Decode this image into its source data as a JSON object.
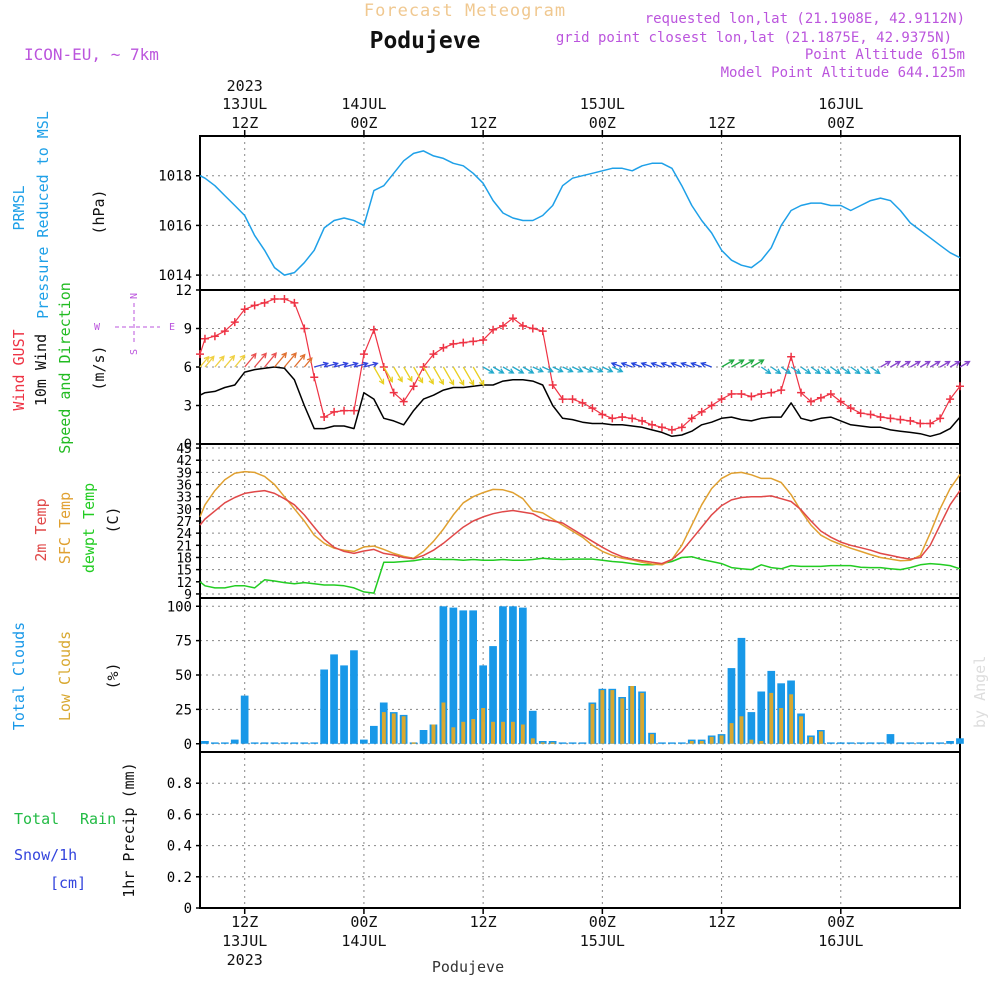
{
  "header": {
    "product": "Forecast Meteogram",
    "location": "Podujeve",
    "model": "ICON-EU, ~ 7km",
    "requested": "requested lon,lat (21.1908E, 42.9112N)",
    "gridpoint": "grid point closest lon,lat (21.1875E, 42.9375N)",
    "point_alt": "Point Altitude 615m",
    "model_alt": "Model Point Altitude 644.125m",
    "watermark": "by Angel",
    "footer": "Podujeve"
  },
  "time_axis": {
    "year": "2023",
    "ticks": [
      {
        "hour": 12,
        "label": "12Z",
        "date": "13JUL"
      },
      {
        "hour": 24,
        "label": "00Z",
        "date": "14JUL"
      },
      {
        "hour": 36,
        "label": "12Z",
        "date": ""
      },
      {
        "hour": 48,
        "label": "00Z",
        "date": "15JUL"
      },
      {
        "hour": 60,
        "label": "12Z",
        "date": ""
      },
      {
        "hour": 72,
        "label": "00Z",
        "date": "16JUL"
      }
    ],
    "range_hours": [
      7.5,
      84
    ]
  },
  "colors": {
    "pressure": "#1ea0e8",
    "gust": "#ee3344",
    "wind": "#000000",
    "dir": "#22bb22",
    "t2m": "#e04848",
    "tsfc": "#e0a030",
    "dewpt": "#22cc22",
    "total_cloud": "#1898e8",
    "low_cloud": "#d8a830",
    "rain": "#22bb44",
    "snow": "#3344dd",
    "alt": "#bb55dd"
  },
  "chart_data": [
    {
      "type": "line",
      "panel": "pressure",
      "labels": [
        "PRMSL",
        "Pressure Reduced to MSL",
        "(hPa)"
      ],
      "ylim": [
        1013.4,
        1019.6
      ],
      "yticks": [
        1014,
        1016,
        1018
      ],
      "x": [
        7.5,
        8,
        9,
        10,
        11,
        12,
        13,
        14,
        15,
        16,
        17,
        18,
        19,
        20,
        21,
        22,
        23,
        24,
        25,
        26,
        27,
        28,
        29,
        30,
        31,
        32,
        33,
        34,
        35,
        36,
        37,
        38,
        39,
        40,
        41,
        42,
        43,
        44,
        45,
        46,
        47,
        48,
        49,
        50,
        51,
        52,
        53,
        54,
        55,
        56,
        57,
        58,
        59,
        60,
        61,
        62,
        63,
        64,
        65,
        66,
        67,
        68,
        69,
        70,
        71,
        72,
        73,
        74,
        75,
        76,
        77,
        78,
        79,
        80,
        81,
        82,
        83,
        84
      ],
      "series": [
        {
          "values": [
            1018.0,
            1017.9,
            1017.6,
            1017.2,
            1016.8,
            1016.4,
            1015.6,
            1015.0,
            1014.3,
            1014.0,
            1014.1,
            1014.5,
            1015.0,
            1015.9,
            1016.2,
            1016.3,
            1016.2,
            1016.0,
            1017.4,
            1017.6,
            1018.1,
            1018.6,
            1018.9,
            1019.0,
            1018.8,
            1018.7,
            1018.5,
            1018.4,
            1018.1,
            1017.7,
            1017.0,
            1016.5,
            1016.3,
            1016.2,
            1016.2,
            1016.4,
            1016.8,
            1017.6,
            1017.9,
            1018.0,
            1018.1,
            1018.2,
            1018.3,
            1018.3,
            1018.2,
            1018.4,
            1018.5,
            1018.5,
            1018.3,
            1017.6,
            1016.8,
            1016.2,
            1015.7,
            1015.0,
            1014.6,
            1014.4,
            1014.3,
            1014.6,
            1015.1,
            1016.0,
            1016.6,
            1016.8,
            1016.9,
            1016.9,
            1016.8,
            1016.8,
            1016.6,
            1016.8,
            1017.0,
            1017.1,
            1017.0,
            1016.6,
            1016.1,
            1015.8,
            1015.5,
            1015.2,
            1014.9,
            1014.7
          ]
        }
      ]
    },
    {
      "type": "line",
      "panel": "wind",
      "labels": [
        "Wind GUST",
        "10m Wind",
        "Speed and Direction",
        "(m/s)"
      ],
      "compass": {
        "n": "N",
        "s": "S",
        "w": "W",
        "e": "E"
      },
      "ylim": [
        0,
        12
      ],
      "yticks": [
        0,
        3,
        6,
        9,
        12
      ],
      "x": [
        7.5,
        8,
        9,
        10,
        11,
        12,
        13,
        14,
        15,
        16,
        17,
        18,
        19,
        20,
        21,
        22,
        23,
        24,
        25,
        26,
        27,
        28,
        29,
        30,
        31,
        32,
        33,
        34,
        35,
        36,
        37,
        38,
        39,
        40,
        41,
        42,
        43,
        44,
        45,
        46,
        47,
        48,
        49,
        50,
        51,
        52,
        53,
        54,
        55,
        56,
        57,
        58,
        59,
        60,
        61,
        62,
        63,
        64,
        65,
        66,
        67,
        68,
        69,
        70,
        71,
        72,
        73,
        74,
        75,
        76,
        77,
        78,
        79,
        80,
        81,
        82,
        83,
        84
      ],
      "series": [
        {
          "name": "gust",
          "values": [
            7.0,
            8.2,
            8.4,
            8.8,
            9.5,
            10.5,
            10.8,
            11.0,
            11.3,
            11.3,
            11.0,
            9.0,
            5.2,
            2.1,
            2.5,
            2.6,
            2.6,
            7.0,
            8.9,
            6.0,
            4.0,
            3.3,
            4.5,
            6.0,
            7.0,
            7.5,
            7.8,
            7.9,
            8.0,
            8.1,
            8.9,
            9.2,
            9.8,
            9.2,
            9.0,
            8.8,
            4.6,
            3.5,
            3.5,
            3.2,
            2.8,
            2.3,
            2.0,
            2.1,
            2.0,
            1.8,
            1.5,
            1.3,
            1.1,
            1.3,
            2.0,
            2.5,
            3.0,
            3.5,
            3.9,
            3.9,
            3.7,
            3.9,
            4.0,
            4.2,
            6.8,
            4.0,
            3.3,
            3.6,
            3.9,
            3.3,
            2.8,
            2.4,
            2.3,
            2.1,
            2.0,
            1.9,
            1.8,
            1.6,
            1.6,
            2.0,
            3.5,
            4.5
          ]
        },
        {
          "name": "wind",
          "values": [
            3.8,
            4.0,
            4.1,
            4.4,
            4.6,
            5.6,
            5.8,
            5.9,
            6.0,
            5.9,
            5.0,
            3.0,
            1.2,
            1.2,
            1.4,
            1.4,
            1.2,
            4.0,
            3.5,
            2.0,
            1.8,
            1.5,
            2.6,
            3.5,
            3.8,
            4.2,
            4.4,
            4.4,
            4.5,
            4.6,
            4.6,
            4.9,
            5.0,
            5.0,
            4.9,
            4.6,
            3.0,
            2.0,
            1.9,
            1.7,
            1.6,
            1.6,
            1.5,
            1.5,
            1.4,
            1.3,
            1.1,
            0.9,
            0.6,
            0.7,
            1.0,
            1.5,
            1.7,
            2.0,
            2.1,
            1.9,
            1.8,
            2.0,
            2.1,
            2.1,
            3.2,
            2.0,
            1.8,
            2.0,
            2.1,
            1.8,
            1.5,
            1.4,
            1.3,
            1.3,
            1.1,
            1.0,
            0.9,
            0.8,
            0.6,
            0.8,
            1.2,
            2.1
          ]
        }
      ]
    },
    {
      "type": "line",
      "panel": "temperature",
      "labels": [
        "2m Temp",
        "SFC Temp",
        "dewpt Temp",
        "(C)"
      ],
      "ylim": [
        8,
        46
      ],
      "yticks": [
        9,
        12,
        15,
        18,
        21,
        24,
        27,
        30,
        33,
        36,
        39,
        42,
        45
      ],
      "x": [
        7.5,
        8,
        9,
        10,
        11,
        12,
        13,
        14,
        15,
        16,
        17,
        18,
        19,
        20,
        21,
        22,
        23,
        24,
        25,
        26,
        27,
        28,
        29,
        30,
        31,
        32,
        33,
        34,
        35,
        36,
        37,
        38,
        39,
        40,
        41,
        42,
        43,
        44,
        45,
        46,
        47,
        48,
        49,
        50,
        51,
        52,
        53,
        54,
        55,
        56,
        57,
        58,
        59,
        60,
        61,
        62,
        63,
        64,
        65,
        66,
        67,
        68,
        69,
        70,
        71,
        72,
        73,
        74,
        75,
        76,
        77,
        78,
        79,
        80,
        81,
        82,
        83,
        84
      ],
      "series": [
        {
          "name": "2m Temp",
          "values": [
            26.0,
            27.5,
            29.5,
            31.5,
            32.8,
            33.8,
            34.2,
            34.5,
            33.8,
            32.5,
            31.0,
            28.5,
            25.5,
            22.5,
            20.5,
            19.5,
            19.0,
            19.6,
            20.0,
            19.0,
            18.6,
            18.0,
            17.7,
            18.5,
            19.8,
            21.5,
            23.5,
            25.5,
            27.0,
            28.0,
            28.8,
            29.3,
            29.6,
            29.2,
            28.8,
            27.5,
            27.0,
            26.5,
            25.0,
            23.5,
            22.0,
            20.5,
            19.2,
            18.2,
            17.6,
            17.2,
            16.8,
            16.5,
            17.5,
            19.5,
            22.5,
            25.5,
            28.5,
            30.8,
            32.2,
            32.8,
            33.0,
            33.0,
            33.2,
            32.5,
            31.8,
            29.8,
            27.0,
            24.5,
            23.0,
            21.8,
            21.0,
            20.4,
            19.8,
            19.0,
            18.5,
            18.0,
            17.6,
            18.0,
            21.0,
            26.0,
            31.0,
            34.5
          ]
        },
        {
          "name": "SFC Temp",
          "values": [
            28.0,
            31.0,
            34.5,
            37.2,
            38.8,
            39.2,
            39.0,
            38.0,
            36.0,
            33.0,
            30.0,
            27.0,
            23.5,
            21.5,
            20.3,
            19.8,
            19.5,
            20.6,
            20.8,
            20.0,
            19.0,
            18.3,
            17.8,
            19.5,
            22.0,
            25.0,
            28.5,
            31.5,
            33.0,
            34.0,
            34.8,
            34.7,
            34.0,
            32.5,
            29.5,
            29.0,
            27.5,
            26.0,
            24.5,
            23.0,
            21.0,
            19.5,
            18.5,
            17.8,
            17.4,
            16.8,
            16.4,
            16.2,
            17.5,
            21.0,
            26.0,
            31.0,
            35.0,
            37.5,
            38.8,
            39.0,
            38.4,
            37.5,
            37.5,
            36.5,
            33.5,
            29.5,
            26.0,
            23.5,
            22.2,
            21.2,
            20.3,
            19.5,
            18.7,
            18.0,
            17.6,
            17.2,
            17.3,
            18.5,
            24.0,
            30.0,
            35.0,
            38.5
          ]
        },
        {
          "name": "dewpt Temp",
          "values": [
            12.0,
            11.0,
            10.5,
            10.5,
            11.0,
            11.0,
            10.5,
            12.5,
            12.2,
            11.8,
            11.5,
            11.8,
            11.5,
            11.2,
            11.2,
            11.0,
            10.5,
            9.5,
            9.2,
            16.8,
            16.8,
            17.0,
            17.2,
            17.6,
            17.6,
            17.5,
            17.5,
            17.3,
            17.5,
            17.3,
            17.3,
            17.5,
            17.3,
            17.3,
            17.5,
            17.8,
            17.6,
            17.5,
            17.6,
            17.6,
            17.6,
            17.3,
            17.0,
            16.8,
            16.5,
            16.2,
            16.2,
            16.5,
            17.0,
            18.0,
            18.2,
            17.5,
            17.0,
            16.5,
            15.5,
            15.2,
            15.0,
            16.2,
            15.5,
            15.2,
            16.0,
            15.8,
            15.8,
            15.8,
            16.0,
            16.0,
            16.0,
            15.6,
            15.5,
            15.5,
            15.2,
            15.0,
            15.5,
            16.2,
            16.5,
            16.3,
            16.0,
            15.2
          ]
        }
      ]
    },
    {
      "type": "bar",
      "panel": "clouds",
      "labels": [
        "Total Clouds",
        "Low Clouds",
        "(%)"
      ],
      "ylim": [
        -6,
        106
      ],
      "yticks": [
        0,
        25,
        50,
        75,
        100
      ],
      "x": [
        8,
        9,
        10,
        11,
        12,
        13,
        14,
        15,
        16,
        17,
        18,
        19,
        20,
        21,
        22,
        23,
        24,
        25,
        26,
        27,
        28,
        29,
        30,
        31,
        32,
        33,
        34,
        35,
        36,
        37,
        38,
        39,
        40,
        41,
        42,
        43,
        44,
        45,
        46,
        47,
        48,
        49,
        50,
        51,
        52,
        53,
        54,
        55,
        56,
        57,
        58,
        59,
        60,
        61,
        62,
        63,
        64,
        65,
        66,
        67,
        68,
        69,
        70,
        71,
        72,
        73,
        74,
        75,
        76,
        77,
        78,
        79,
        80,
        81,
        82,
        83,
        84
      ],
      "series": [
        {
          "name": "Total Clouds",
          "values": [
            2,
            1,
            1,
            3,
            35,
            1,
            1,
            1,
            1,
            1,
            1,
            1,
            54,
            65,
            57,
            68,
            3,
            13,
            30,
            23,
            21,
            1,
            10,
            14,
            100,
            99,
            97,
            97,
            57,
            71,
            100,
            100,
            99,
            24,
            2,
            2,
            1,
            1,
            1,
            30,
            40,
            40,
            34,
            42,
            38,
            8,
            1,
            1,
            1,
            3,
            3,
            6,
            7,
            55,
            77,
            23,
            38,
            53,
            44,
            46,
            22,
            6,
            10,
            1,
            1,
            1,
            1,
            1,
            1,
            7,
            1,
            1,
            1,
            1,
            1,
            2,
            4
          ]
        },
        {
          "name": "Low Clouds",
          "values": [
            0,
            0,
            0,
            0,
            0,
            0,
            0,
            0,
            0,
            0,
            0,
            0,
            0,
            0,
            0,
            0,
            0,
            0,
            23,
            22,
            20,
            1,
            0,
            14,
            30,
            12,
            16,
            18,
            26,
            16,
            16,
            16,
            14,
            4,
            1,
            1,
            0,
            0,
            0,
            29,
            39,
            39,
            33,
            42,
            37,
            7,
            0,
            0,
            0,
            2,
            2,
            5,
            6,
            15,
            20,
            3,
            2,
            37,
            26,
            36,
            20,
            5,
            9,
            0,
            0,
            0,
            0,
            0,
            0,
            0,
            0,
            0,
            0,
            0,
            0,
            0,
            0
          ]
        }
      ]
    },
    {
      "type": "line",
      "panel": "precip",
      "labels": [
        "1hr Precip (mm)"
      ],
      "legend": [
        "Total",
        "Rain",
        "Snow/1h",
        "[cm]"
      ],
      "ylim": [
        0,
        1
      ],
      "yticks": [
        "0",
        "0.2",
        "0.4",
        "0.6",
        "0.8"
      ],
      "series": []
    }
  ]
}
